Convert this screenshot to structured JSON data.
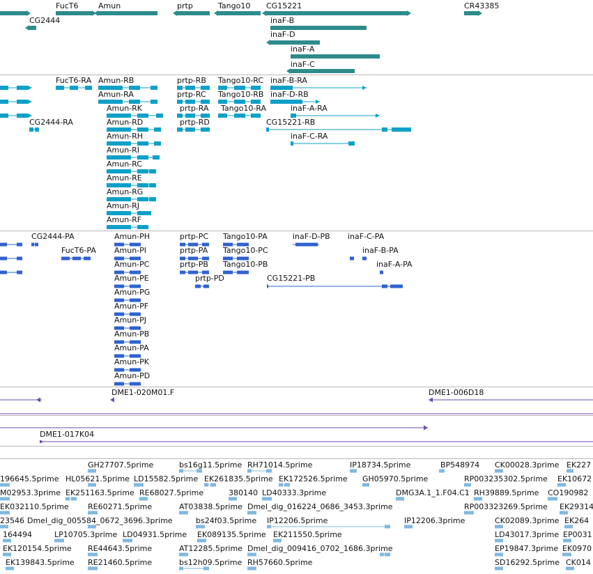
{
  "colors": {
    "gene": "#2e8b8b",
    "transcript": "#0fa0c8",
    "protein": "#2f62cf",
    "bac": "#6a4bb0",
    "est": "#80b8e0",
    "separator": "#b8b8b8"
  },
  "tracks": [
    {
      "key": "genes",
      "labels": [
        {
          "text": "FucT6"
        },
        {
          "text": "Amun"
        },
        {
          "text": "prtp"
        },
        {
          "text": "Tango10"
        },
        {
          "text": "CG15221"
        },
        {
          "text": "CR43385"
        },
        {
          "text": "CG2444"
        },
        {
          "text": "inaF-B"
        },
        {
          "text": "inaF-D"
        },
        {
          "text": "inaF-A"
        },
        {
          "text": "inaF-C"
        }
      ]
    },
    {
      "key": "transcripts",
      "labels": [
        {
          "text": "FucT6-RA"
        },
        {
          "text": "Amun-RB"
        },
        {
          "text": "prtp-RB"
        },
        {
          "text": "Tango10-RC"
        },
        {
          "text": "inaF-B-RA"
        },
        {
          "text": "Amun-RA"
        },
        {
          "text": "prtp-RC"
        },
        {
          "text": "Tango10-RB"
        },
        {
          "text": "inaF-D-RB"
        },
        {
          "text": "Amun-RK"
        },
        {
          "text": "prtp-RA"
        },
        {
          "text": "Tango10-RA"
        },
        {
          "text": "inaF-A-RA"
        },
        {
          "text": "CG2444-RA"
        },
        {
          "text": "Amun-RD"
        },
        {
          "text": "prtp-RD"
        },
        {
          "text": "CG15221-RB"
        },
        {
          "text": "Amun-RH"
        },
        {
          "text": "inaF-C-RA"
        },
        {
          "text": "Amun-RI"
        },
        {
          "text": "Amun-RC"
        },
        {
          "text": "Amun-RE"
        },
        {
          "text": "Amun-RG"
        },
        {
          "text": "Amun-RJ"
        },
        {
          "text": "Amun-RF"
        }
      ]
    },
    {
      "key": "proteins",
      "labels": [
        {
          "text": "CG2444-PA"
        },
        {
          "text": "Amun-PH"
        },
        {
          "text": "prtp-PC"
        },
        {
          "text": "Tango10-PA"
        },
        {
          "text": "inaF-D-PB"
        },
        {
          "text": "inaF-C-PA"
        },
        {
          "text": "FucT6-PA"
        },
        {
          "text": "Amun-PI"
        },
        {
          "text": "prtp-PA"
        },
        {
          "text": "Tango10-PC"
        },
        {
          "text": "inaF-B-PA"
        },
        {
          "text": "Amun-PC"
        },
        {
          "text": "prtp-PB"
        },
        {
          "text": "Tango10-PB"
        },
        {
          "text": "inaF-A-PA"
        },
        {
          "text": "Amun-PE"
        },
        {
          "text": "prtp-PD"
        },
        {
          "text": "CG15221-PB"
        },
        {
          "text": "Amun-PG"
        },
        {
          "text": "Amun-PF"
        },
        {
          "text": "Amun-PJ"
        },
        {
          "text": "Amun-PB"
        },
        {
          "text": "Amun-PA"
        },
        {
          "text": "Amun-PK"
        },
        {
          "text": "Amun-PD"
        }
      ]
    },
    {
      "key": "bacs",
      "labels": [
        {
          "text": "DME1-020M01.F"
        },
        {
          "text": "DME1-006D18"
        },
        {
          "text": "DME1-017K04"
        }
      ]
    },
    {
      "key": "ests",
      "labels": [
        {
          "text": "GH27707.5prime"
        },
        {
          "text": "bs16g11.5prime"
        },
        {
          "text": "RH71014.5prime"
        },
        {
          "text": "IP18734.5prime"
        },
        {
          "text": "BP548974"
        },
        {
          "text": "CK00028.3prime"
        },
        {
          "text": "EK227"
        },
        {
          "text": "196645.5prime"
        },
        {
          "text": "HL05621.5prime"
        },
        {
          "text": "LD15582.5prime"
        },
        {
          "text": "EK261835.5prime"
        },
        {
          "text": "EK172526.5prime"
        },
        {
          "text": "GH05970.5prime"
        },
        {
          "text": "RP003235302.5prime"
        },
        {
          "text": "EK10672"
        },
        {
          "text": "M02953.3prime"
        },
        {
          "text": "EK251163.5prime"
        },
        {
          "text": "RE68027.5prime"
        },
        {
          "text": "380140"
        },
        {
          "text": "LD40333.3prime"
        },
        {
          "text": "DMG3A.1_1.F04.C1"
        },
        {
          "text": "RH39889.5prime"
        },
        {
          "text": "CO190982"
        },
        {
          "text": "EK032110.5prime"
        },
        {
          "text": "RE60271.5prime"
        },
        {
          "text": "AT03838.5prime"
        },
        {
          "text": "Dmel_dig_016224_0686_3453.3prime"
        },
        {
          "text": "RP003323269.5prime"
        },
        {
          "text": "EK29314"
        },
        {
          "text": "23546"
        },
        {
          "text": "Dmel_dig_005584_0672_3696.3prime"
        },
        {
          "text": "bs24f03.5prime"
        },
        {
          "text": "IP12206.5prime"
        },
        {
          "text": "IP12206.3prime"
        },
        {
          "text": "CK02089.3prime"
        },
        {
          "text": "EK264"
        },
        {
          "text": "164494"
        },
        {
          "text": "LP10705.3prime"
        },
        {
          "text": "LD04931.5prime"
        },
        {
          "text": "EK089135.5prime"
        },
        {
          "text": "EK211550.5prime"
        },
        {
          "text": "LD43017.3prime"
        },
        {
          "text": "EP0031"
        },
        {
          "text": "EK120154.5prime"
        },
        {
          "text": "RE44643.5prime"
        },
        {
          "text": "AT12285.5prime"
        },
        {
          "text": "Dmel_dig_009416_0702_1686.3prime"
        },
        {
          "text": "EP19847.3prime"
        },
        {
          "text": "EK0970"
        },
        {
          "text": "EK139843.5prime"
        },
        {
          "text": "RE21460.5prime"
        },
        {
          "text": "bs12h09.5prime"
        },
        {
          "text": "RH57660.5prime"
        },
        {
          "text": "SD16292.5prime"
        },
        {
          "text": "CK014"
        }
      ]
    }
  ]
}
